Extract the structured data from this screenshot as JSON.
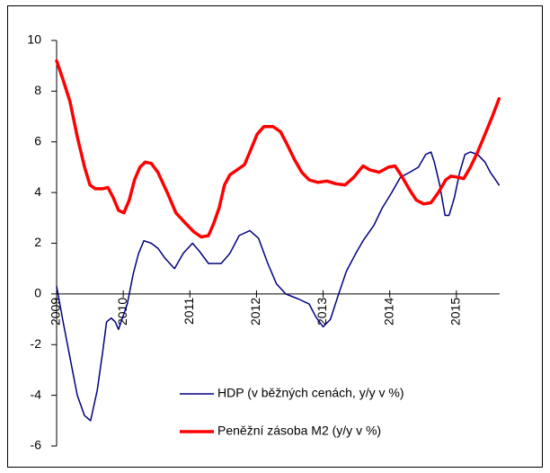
{
  "chart_data": {
    "type": "line",
    "xlim": [
      2009,
      2015.65
    ],
    "xticks": [
      2009,
      2010,
      2011,
      2012,
      2013,
      2014,
      2015
    ],
    "ylim": [
      -6,
      10
    ],
    "yticks": [
      -6,
      -4,
      -2,
      0,
      2,
      4,
      6,
      8,
      10
    ],
    "legend": "lower right",
    "series": [
      {
        "name": "HDP (v běžných cenách, y/y v %)",
        "color": "#000080",
        "width": 1.5,
        "x": [
          2009.0,
          2009.09,
          2009.2,
          2009.31,
          2009.42,
          2009.51,
          2009.61,
          2009.69,
          2009.75,
          2009.82,
          2009.88,
          2009.93,
          2010.06,
          2010.15,
          2010.23,
          2010.31,
          2010.42,
          2010.52,
          2010.63,
          2010.77,
          2010.9,
          2011.04,
          2011.14,
          2011.28,
          2011.47,
          2011.6,
          2011.74,
          2011.9,
          2012.03,
          2012.17,
          2012.3,
          2012.44,
          2012.63,
          2012.79,
          2012.89,
          2013.0,
          2013.11,
          2013.22,
          2013.35,
          2013.49,
          2013.6,
          2013.76,
          2013.89,
          2014.03,
          2014.16,
          2014.3,
          2014.43,
          2014.54,
          2014.62,
          2014.67,
          2014.75,
          2014.83,
          2014.89,
          2014.97,
          2015.05,
          2015.13,
          2015.21,
          2015.32,
          2015.43,
          2015.51,
          2015.64
        ],
        "values": [
          0.3,
          -1.0,
          -2.5,
          -4.0,
          -4.8,
          -5.0,
          -3.8,
          -2.3,
          -1.1,
          -0.95,
          -1.1,
          -1.4,
          -0.4,
          0.8,
          1.6,
          2.1,
          2.0,
          1.8,
          1.4,
          1.0,
          1.6,
          2.0,
          1.7,
          1.2,
          1.2,
          1.6,
          2.3,
          2.5,
          2.2,
          1.2,
          0.4,
          0.0,
          -0.2,
          -0.4,
          -0.9,
          -1.3,
          -1.0,
          -0.1,
          0.9,
          1.6,
          2.1,
          2.7,
          3.4,
          4.0,
          4.6,
          4.8,
          5.0,
          5.5,
          5.6,
          5.2,
          4.3,
          3.1,
          3.1,
          3.8,
          4.8,
          5.5,
          5.6,
          5.5,
          5.2,
          4.8,
          4.3
        ]
      },
      {
        "name": "Peněžní zásoba M2 (y/y v %)",
        "color": "#ff0000",
        "width": 3.5,
        "x": [
          2009.0,
          2009.09,
          2009.2,
          2009.31,
          2009.42,
          2009.5,
          2009.58,
          2009.69,
          2009.77,
          2009.85,
          2009.93,
          2010.01,
          2010.09,
          2010.17,
          2010.25,
          2010.33,
          2010.42,
          2010.52,
          2010.66,
          2010.79,
          2010.93,
          2011.06,
          2011.17,
          2011.28,
          2011.36,
          2011.44,
          2011.52,
          2011.6,
          2011.71,
          2011.82,
          2011.9,
          2012.01,
          2012.11,
          2012.25,
          2012.36,
          2012.46,
          2012.57,
          2012.68,
          2012.79,
          2012.92,
          2013.06,
          2013.19,
          2013.33,
          2013.46,
          2013.6,
          2013.7,
          2013.84,
          2013.98,
          2014.08,
          2014.19,
          2014.3,
          2014.4,
          2014.51,
          2014.62,
          2014.73,
          2014.84,
          2014.92,
          2015.02,
          2015.11,
          2015.21,
          2015.32,
          2015.43,
          2015.54,
          2015.64
        ],
        "values": [
          9.2,
          8.5,
          7.6,
          6.2,
          5.0,
          4.3,
          4.15,
          4.15,
          4.2,
          3.8,
          3.3,
          3.2,
          3.7,
          4.5,
          5.0,
          5.2,
          5.15,
          4.8,
          4.0,
          3.2,
          2.8,
          2.45,
          2.25,
          2.3,
          2.8,
          3.4,
          4.3,
          4.7,
          4.9,
          5.1,
          5.6,
          6.3,
          6.6,
          6.6,
          6.4,
          5.9,
          5.3,
          4.8,
          4.5,
          4.4,
          4.45,
          4.35,
          4.3,
          4.6,
          5.05,
          4.9,
          4.8,
          5.0,
          5.05,
          4.6,
          4.1,
          3.7,
          3.55,
          3.6,
          4.0,
          4.5,
          4.65,
          4.6,
          4.55,
          5.0,
          5.6,
          6.3,
          7.0,
          7.7
        ]
      }
    ]
  }
}
